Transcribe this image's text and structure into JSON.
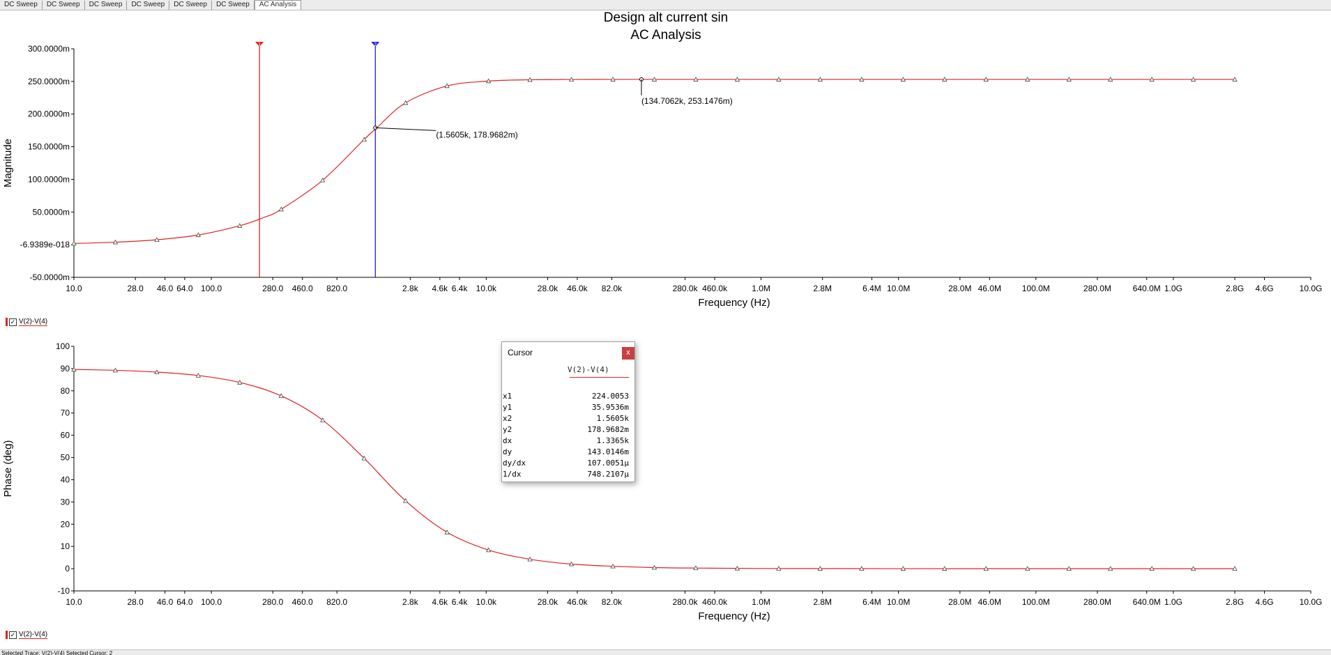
{
  "tabs": [
    "DC Sweep",
    "DC Sweep",
    "DC Sweep",
    "DC Sweep",
    "DC Sweep",
    "DC Sweep",
    "AC Analysis"
  ],
  "active_tab": 6,
  "title_line1": "Design alt current sin",
  "title_line2": "AC Analysis",
  "legend_label": "V(2)-V(4)",
  "status_text": "Selected Trace: V(2)-V(4)   Selected Cursor: 2",
  "colors": {
    "trace": "#e02020",
    "cursor1": "#e02020",
    "cursor2": "#2020e0",
    "axis": "#000000"
  },
  "cursor_window": {
    "title": "Cursor",
    "trace_name": "V(2)-V(4)",
    "close_glyph": "x",
    "rows": [
      {
        "k": "x1",
        "v": "224.0053"
      },
      {
        "k": "y1",
        "v": "35.9536m"
      },
      {
        "k": "x2",
        "v": "1.5605k"
      },
      {
        "k": "y2",
        "v": "178.9682m"
      },
      {
        "k": "dx",
        "v": "1.3365k"
      },
      {
        "k": "dy",
        "v": "143.0146m"
      },
      {
        "k": "dy/dx",
        "v": "107.0051µ"
      },
      {
        "k": "1/dx",
        "v": "748.2107µ"
      }
    ]
  },
  "chart_data": [
    {
      "type": "line",
      "title": "Design alt current sin / AC Analysis",
      "xlabel": "Frequency (Hz)",
      "ylabel": "Magnitude",
      "xscale": "log",
      "xlim": [
        10,
        10000000000
      ],
      "ylim": [
        -0.05,
        0.3
      ],
      "yticks": [
        {
          "v": 0.3,
          "label": "300.0000m"
        },
        {
          "v": 0.25,
          "label": "250.0000m"
        },
        {
          "v": 0.2,
          "label": "200.0000m"
        },
        {
          "v": 0.15,
          "label": "150.0000m"
        },
        {
          "v": 0.1,
          "label": "100.0000m"
        },
        {
          "v": 0.05,
          "label": "50.0000m"
        },
        {
          "v": 0.0,
          "label": "-6.9389e-018"
        },
        {
          "v": -0.05,
          "label": "-50.0000m"
        }
      ],
      "series": [
        {
          "name": "V(2)-V(4)",
          "x": [
            10,
            20,
            40,
            80,
            160,
            240,
            320,
            640,
            1280,
            1600,
            2560,
            5120,
            10240,
            20000,
            40000,
            80000,
            160000,
            1000000,
            10000000,
            100000000,
            1000000000,
            2800000000
          ],
          "y": [
            0.0019,
            0.0038,
            0.0075,
            0.0148,
            0.0289,
            0.0415,
            0.0538,
            0.098,
            0.1601,
            0.179,
            0.2166,
            0.2428,
            0.2505,
            0.2525,
            0.253,
            0.2531,
            0.2531,
            0.2531,
            0.2531,
            0.2531,
            0.2531,
            0.2531
          ]
        }
      ],
      "cursors": [
        {
          "name": "1",
          "x": 224.0053,
          "y": 0.0359536
        },
        {
          "name": "2",
          "x": 1560.5,
          "y": 0.1789682
        }
      ],
      "annotations": [
        {
          "x": 1560.5,
          "y": 0.1789682,
          "text": "(1.5605k, 178.9682m)"
        },
        {
          "x": 134706.2,
          "y": 0.2531476,
          "text": "(134.7062k, 253.1476m)"
        }
      ]
    },
    {
      "type": "line",
      "xlabel": "Frequency (Hz)",
      "ylabel": "Phase (deg)",
      "xscale": "log",
      "xlim": [
        10,
        10000000000
      ],
      "ylim": [
        -10,
        100
      ],
      "yticks": [
        {
          "v": 100,
          "label": "100"
        },
        {
          "v": 90,
          "label": "90"
        },
        {
          "v": 80,
          "label": "80"
        },
        {
          "v": 70,
          "label": "70"
        },
        {
          "v": 60,
          "label": "60"
        },
        {
          "v": 50,
          "label": "50"
        },
        {
          "v": 40,
          "label": "40"
        },
        {
          "v": 30,
          "label": "30"
        },
        {
          "v": 20,
          "label": "20"
        },
        {
          "v": 10,
          "label": "10"
        },
        {
          "v": 0,
          "label": "0"
        },
        {
          "v": -10,
          "label": "-10"
        }
      ],
      "series": [
        {
          "name": "V(2)-V(4)",
          "x": [
            10,
            20,
            40,
            80,
            160,
            320,
            640,
            1280,
            2560,
            5120,
            10240,
            20480,
            40960,
            81920,
            163840,
            327680,
            1000000,
            10000000,
            100000000,
            1000000000,
            2800000000
          ],
          "y": [
            89.6,
            89.2,
            88.4,
            86.9,
            83.8,
            77.8,
            67.0,
            49.9,
            30.8,
            16.6,
            8.5,
            4.3,
            2.1,
            1.1,
            0.5,
            0.27,
            0.09,
            0.01,
            0.0,
            0.0,
            0.0
          ]
        }
      ]
    }
  ],
  "xticks": [
    "10.0",
    "28.0",
    "46.0",
    "64.0",
    "100.0",
    "280.0",
    "460.0",
    "820.0",
    "2.8k",
    "4.6k",
    "6.4k",
    "10.0k",
    "28.0k",
    "46.0k",
    "82.0k",
    "280.0k",
    "460.0k",
    "1.0M",
    "2.8M",
    "6.4M",
    "10.0M",
    "28.0M",
    "46.0M",
    "100.0M",
    "280.0M",
    "640.0M",
    "1.0G",
    "2.8G",
    "4.6G",
    "10.0G"
  ]
}
